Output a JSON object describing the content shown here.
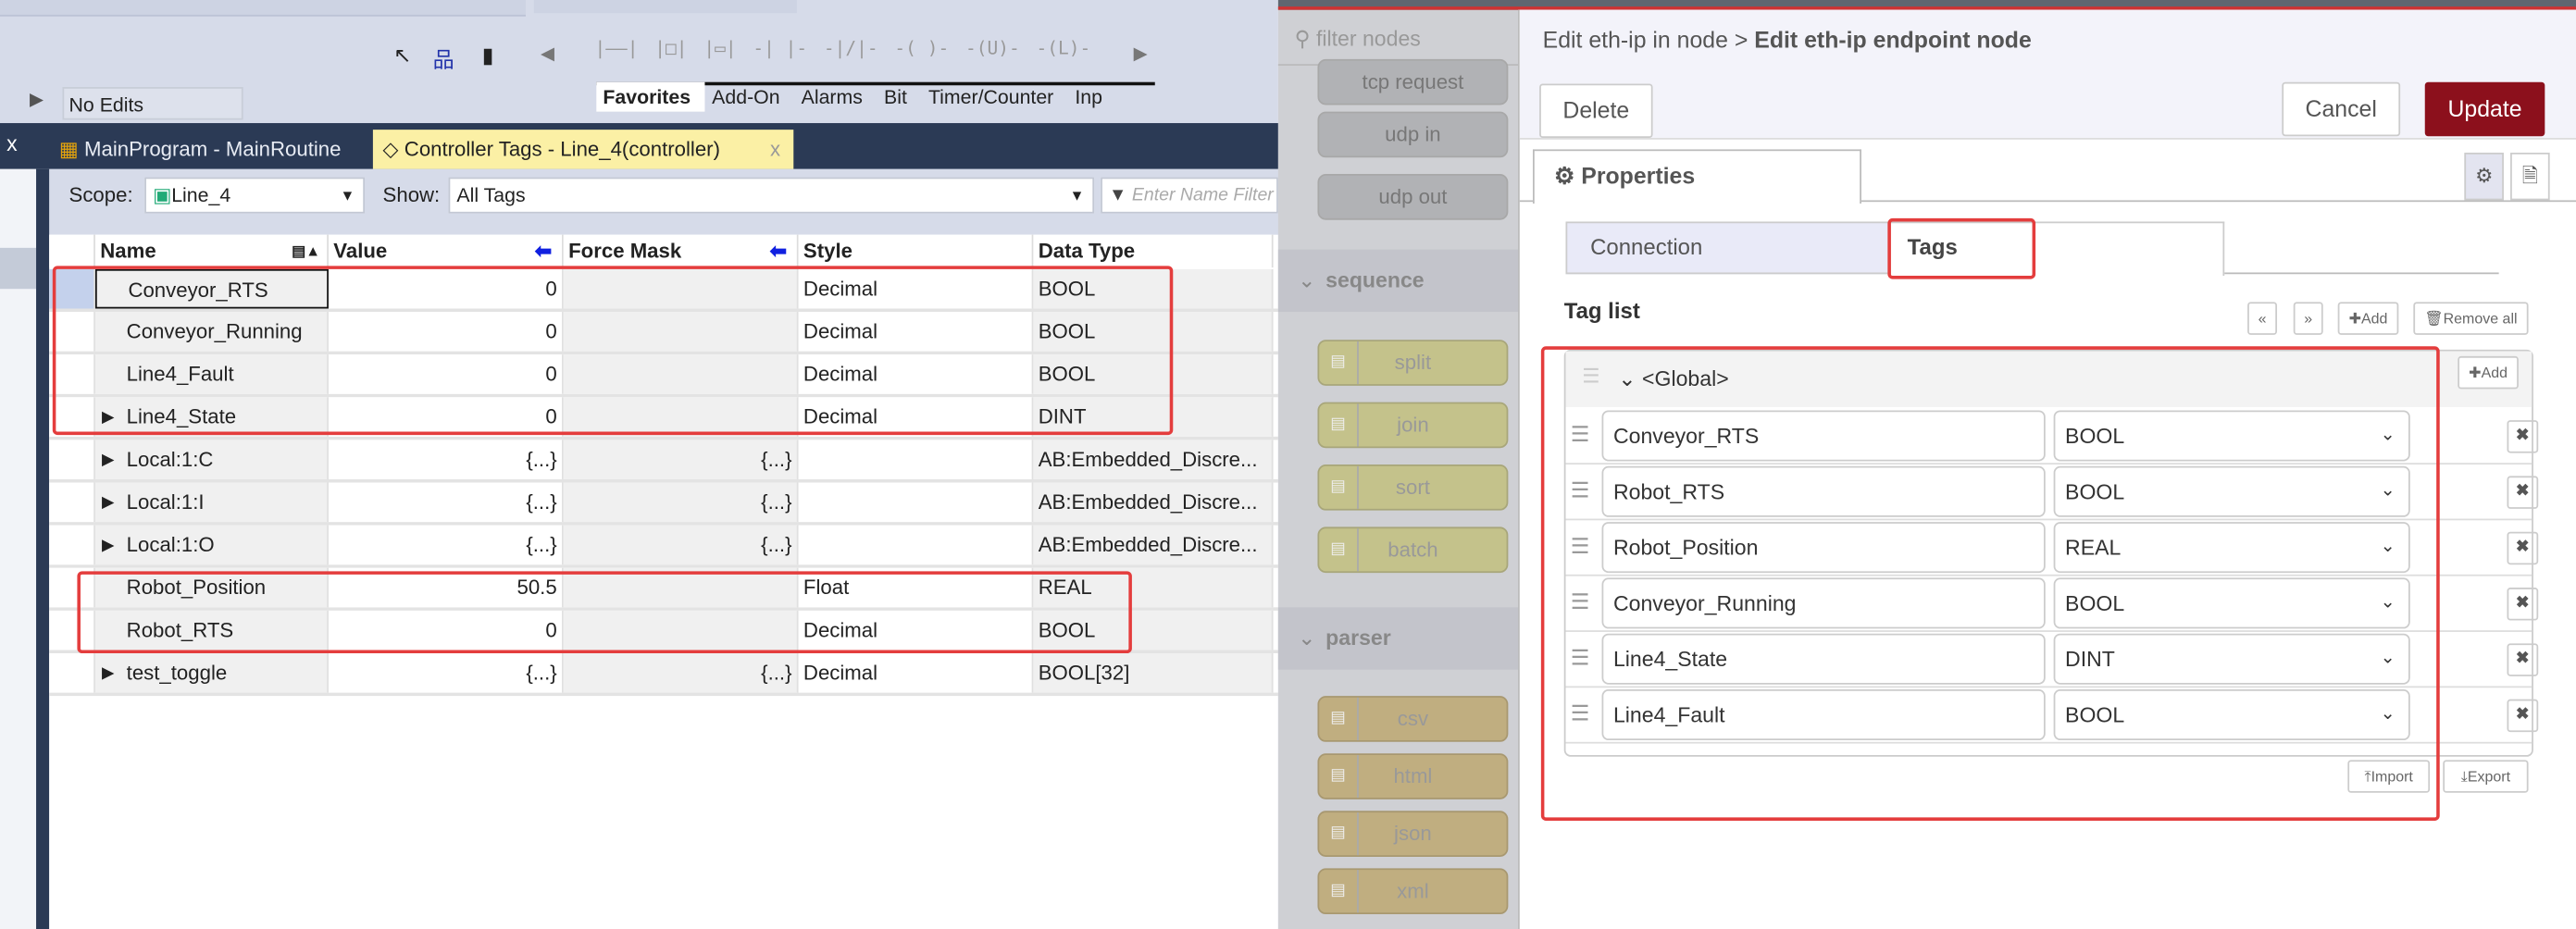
{
  "rslogix": {
    "toolbar": {
      "no_edits": "No Edits",
      "ladder_elements": [
        "|——|",
        "|□|",
        "|▭|",
        "-| |-",
        "-|/|-",
        "-( )-",
        "-(U)-",
        "-(L)-"
      ]
    },
    "palette_tabs": [
      "Favorites",
      "Add-On",
      "Alarms",
      "Bit",
      "Timer/Counter",
      "Inp"
    ],
    "doc_tabs": [
      {
        "label": "MainProgram - MainRoutine",
        "active": false
      },
      {
        "label": "Controller Tags - Line_4(controller)",
        "active": true
      }
    ],
    "close_label": "x",
    "scope_label": "Scope:",
    "scope_value": "Line_4",
    "show_label": "Show:",
    "show_value": "All Tags",
    "filter_placeholder": "Enter Name Filter",
    "columns": [
      "Name",
      "Value",
      "Force Mask",
      "Style",
      "Data Type"
    ],
    "rows": [
      {
        "name": "Conveyor_RTS",
        "value": "0",
        "force": "",
        "style": "Decimal",
        "type": "BOOL",
        "expandable": false,
        "selected": true
      },
      {
        "name": "Conveyor_Running",
        "value": "0",
        "force": "",
        "style": "Decimal",
        "type": "BOOL",
        "expandable": false
      },
      {
        "name": "Line4_Fault",
        "value": "0",
        "force": "",
        "style": "Decimal",
        "type": "BOOL",
        "expandable": false
      },
      {
        "name": "Line4_State",
        "value": "0",
        "force": "",
        "style": "Decimal",
        "type": "DINT",
        "expandable": true
      },
      {
        "name": "Local:1:C",
        "value": "{...}",
        "force": "{...}",
        "style": "",
        "type": "AB:Embedded_Discre...",
        "expandable": true
      },
      {
        "name": "Local:1:I",
        "value": "{...}",
        "force": "{...}",
        "style": "",
        "type": "AB:Embedded_Discre...",
        "expandable": true
      },
      {
        "name": "Local:1:O",
        "value": "{...}",
        "force": "{...}",
        "style": "",
        "type": "AB:Embedded_Discre...",
        "expandable": true
      },
      {
        "name": "Robot_Position",
        "value": "50.5",
        "force": "",
        "style": "Float",
        "type": "REAL",
        "expandable": false
      },
      {
        "name": "Robot_RTS",
        "value": "0",
        "force": "",
        "style": "Decimal",
        "type": "BOOL",
        "expandable": false
      },
      {
        "name": "test_toggle",
        "value": "{...}",
        "force": "{...}",
        "style": "Decimal",
        "type": "BOOL[32]",
        "expandable": true
      }
    ]
  },
  "palette": {
    "filter_placeholder": "filter nodes",
    "nodes_top": [
      "tcp request",
      "udp in",
      "udp out"
    ],
    "categories": [
      {
        "name": "sequence",
        "nodes": [
          "split",
          "join",
          "sort",
          "batch"
        ]
      },
      {
        "name": "parser",
        "nodes": [
          "csv",
          "html",
          "json",
          "xml"
        ]
      }
    ]
  },
  "dialog": {
    "breadcrumb": "Edit eth-ip in node >",
    "title": "Edit eth-ip endpoint node",
    "delete": "Delete",
    "cancel": "Cancel",
    "update": "Update",
    "properties_tab": "Properties",
    "tabs": [
      "Connection",
      "Tags"
    ],
    "active_tab": "Tags",
    "tag_list_label": "Tag list",
    "add": "Add",
    "remove_all": "Remove all",
    "group": "<Global>",
    "group_add": "Add",
    "tags": [
      {
        "name": "Conveyor_RTS",
        "type": "BOOL"
      },
      {
        "name": "Robot_RTS",
        "type": "BOOL"
      },
      {
        "name": "Robot_Position",
        "type": "REAL"
      },
      {
        "name": "Conveyor_Running",
        "type": "BOOL"
      },
      {
        "name": "Line4_State",
        "type": "DINT"
      },
      {
        "name": "Line4_Fault",
        "type": "BOOL"
      }
    ],
    "import": "Import",
    "export": "Export"
  },
  "colors": {
    "update_button": "#8c101c",
    "highlight": "#e43d3d",
    "tab_active": "#fbf0a5",
    "nav": "#2b3a55"
  }
}
